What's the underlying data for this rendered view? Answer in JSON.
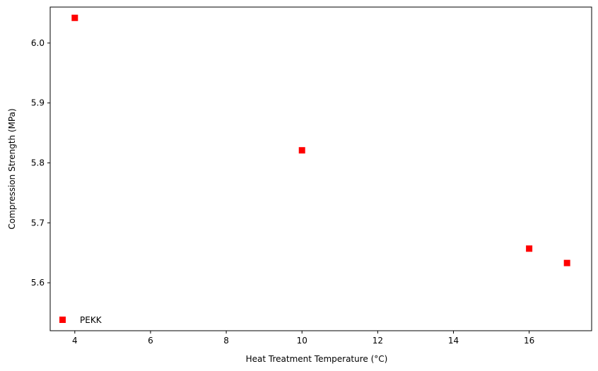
{
  "chart_data": {
    "type": "scatter",
    "xlabel": "Heat Treatment Temperature (°C)",
    "ylabel": "Compression Strength (MPa)",
    "xlim": [
      3.35,
      17.65
    ],
    "ylim": [
      5.52,
      6.06
    ],
    "xticks": [
      4,
      6,
      8,
      10,
      12,
      14,
      16
    ],
    "xtick_labels": [
      "4",
      "6",
      "8",
      "10",
      "12",
      "14",
      "16"
    ],
    "yticks": [
      5.6,
      5.7,
      5.8,
      5.9,
      6.0
    ],
    "ytick_labels": [
      "5.6",
      "5.7",
      "5.8",
      "5.9",
      "6.0"
    ],
    "grid": false,
    "legend_position": "bottom-left",
    "series": [
      {
        "name": "PEKK",
        "color": "#ff0000",
        "marker": "square",
        "x": [
          4,
          10,
          16,
          17
        ],
        "y": [
          6.042,
          5.821,
          5.657,
          5.633
        ]
      }
    ]
  }
}
